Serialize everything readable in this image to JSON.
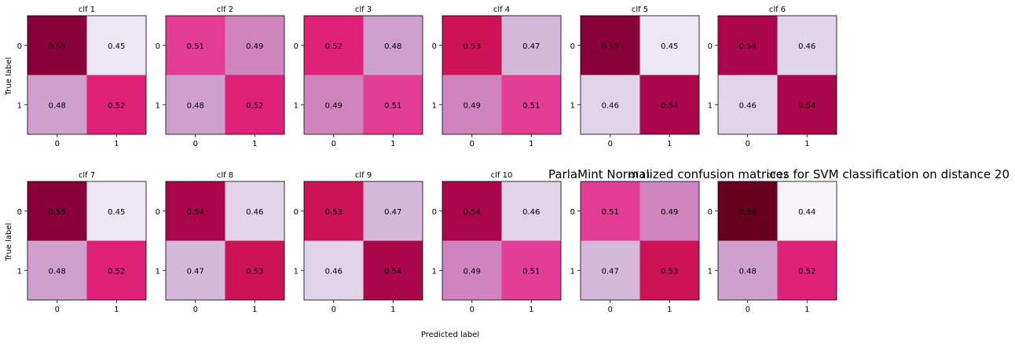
{
  "chart_data": {
    "type": "heatmap",
    "title": "ParlaMint Normalized confusion matrices for SVM classification on distance 20",
    "xlabel": "Predicted label",
    "ylabel": "True label",
    "class_labels": [
      "0",
      "1"
    ],
    "colormap": "PuRd",
    "color_range": [
      0.44,
      0.56
    ],
    "grid": false,
    "matrices": [
      {
        "name": "clf 1",
        "values": [
          [
            0.55,
            0.45
          ],
          [
            0.48,
            0.52
          ]
        ]
      },
      {
        "name": "clf 2",
        "values": [
          [
            0.51,
            0.49
          ],
          [
            0.48,
            0.52
          ]
        ]
      },
      {
        "name": "clf 3",
        "values": [
          [
            0.52,
            0.48
          ],
          [
            0.49,
            0.51
          ]
        ]
      },
      {
        "name": "clf 4",
        "values": [
          [
            0.53,
            0.47
          ],
          [
            0.49,
            0.51
          ]
        ]
      },
      {
        "name": "clf 5",
        "values": [
          [
            0.55,
            0.45
          ],
          [
            0.46,
            0.54
          ]
        ]
      },
      {
        "name": "clf 6",
        "values": [
          [
            0.54,
            0.46
          ],
          [
            0.46,
            0.54
          ]
        ]
      },
      {
        "name": "clf 7",
        "values": [
          [
            0.55,
            0.45
          ],
          [
            0.48,
            0.52
          ]
        ]
      },
      {
        "name": "clf 8",
        "values": [
          [
            0.54,
            0.46
          ],
          [
            0.47,
            0.53
          ]
        ]
      },
      {
        "name": "clf 9",
        "values": [
          [
            0.53,
            0.47
          ],
          [
            0.46,
            0.54
          ]
        ]
      },
      {
        "name": "clf 10",
        "values": [
          [
            0.54,
            0.46
          ],
          [
            0.49,
            0.51
          ]
        ]
      },
      {
        "name": "clf 11",
        "values": [
          [
            0.51,
            0.49
          ],
          [
            0.47,
            0.53
          ]
        ]
      },
      {
        "name": "clf 12",
        "values": [
          [
            0.56,
            0.44
          ],
          [
            0.48,
            0.52
          ]
        ]
      }
    ]
  }
}
